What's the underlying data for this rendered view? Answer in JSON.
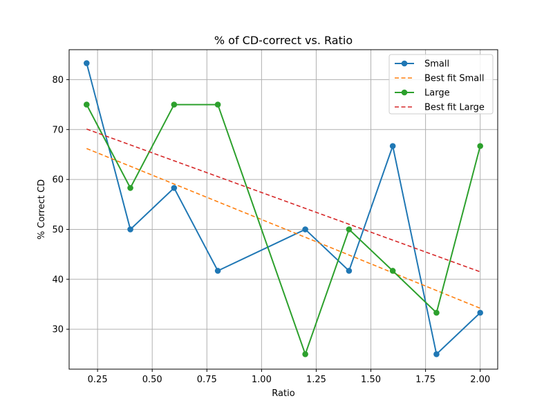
{
  "chart_data": {
    "type": "line",
    "title": "% of CD-correct vs. Ratio",
    "xlabel": "Ratio",
    "ylabel": "% Correct CD",
    "xlim": [
      0.12,
      2.08
    ],
    "ylim": [
      22,
      86
    ],
    "xticks": [
      0.25,
      0.5,
      0.75,
      1.0,
      1.25,
      1.5,
      1.75,
      2.0
    ],
    "xtick_labels": [
      "0.25",
      "0.50",
      "0.75",
      "1.00",
      "1.25",
      "1.50",
      "1.75",
      "2.00"
    ],
    "yticks": [
      30,
      40,
      50,
      60,
      70,
      80
    ],
    "ytick_labels": [
      "30",
      "40",
      "50",
      "60",
      "70",
      "80"
    ],
    "grid": true,
    "legend_position": "top-right",
    "series": [
      {
        "name": "Small",
        "style": "line-marker",
        "color": "#1f77b4",
        "x": [
          0.2,
          0.4,
          0.6,
          0.8,
          1.2,
          1.4,
          1.6,
          1.8,
          2.0
        ],
        "y": [
          83.3,
          50.0,
          58.3,
          41.7,
          50.0,
          41.7,
          66.7,
          25.0,
          33.3
        ]
      },
      {
        "name": "Best fit Small",
        "style": "dashed",
        "color": "#ff7f0e",
        "x": [
          0.2,
          2.0
        ],
        "y": [
          66.2,
          34.2
        ]
      },
      {
        "name": "Large",
        "style": "line-marker",
        "color": "#2ca02c",
        "x": [
          0.2,
          0.4,
          0.6,
          0.8,
          1.2,
          1.4,
          1.6,
          1.8,
          2.0
        ],
        "y": [
          75.0,
          58.3,
          75.0,
          75.0,
          25.0,
          50.0,
          41.7,
          33.3,
          66.7
        ]
      },
      {
        "name": "Best fit Large",
        "style": "dashed",
        "color": "#d62728",
        "x": [
          0.2,
          2.0
        ],
        "y": [
          70.1,
          41.5
        ]
      }
    ]
  }
}
